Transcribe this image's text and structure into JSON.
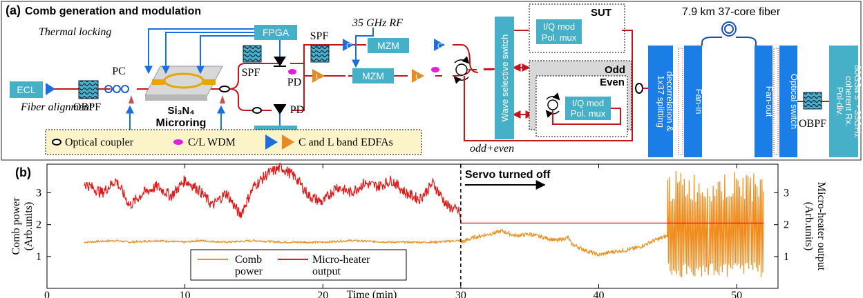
{
  "panel_a": {
    "label": "(a)",
    "title": "Comb generation and modulation",
    "thermal_locking": "Thermal locking",
    "fiber_alignment": "Fiber alignment",
    "microring": "Microring",
    "microring_material": "Si₃N₄",
    "ecl": "ECL",
    "obpf": "OBPF",
    "pc": "PC",
    "fpga": "FPGA",
    "spf": "SPF",
    "pd": "PD",
    "rf": "35 GHz RF",
    "mzm": "MZM",
    "c_band": "C",
    "l_band": "L",
    "wss": "Wave selective switch",
    "sut": "SUT",
    "iq_mod": "I/Q mod",
    "pol_mux": "Pol. mux",
    "odd": "Odd",
    "even": "Even",
    "odd_even": "odd+even",
    "splitting_line1": "1x37 splitting",
    "splitting_line2": "decorrelation &",
    "splitting_line3": "amplification",
    "fan_in": "Fan-in",
    "fan_out": "Fan-out",
    "fiber": "7.9 km 37-core fiber",
    "optical_switch": "Optical switch",
    "rx_line1": "Pol-div.",
    "rx_line2": "coherent Rx.",
    "rx_line3": "80GSa s⁻¹ 33GHz",
    "legend_coupler": "Optical coupler",
    "legend_wdm": "C/L WDM",
    "legend_edfa": "C and L band EDFAs",
    "colors": {
      "box": "#46b0c8",
      "blue_box": "#1a7ee6",
      "red_line": "#c4141c",
      "control": "#1a6fe0",
      "legend_bg": "#fdf3c8",
      "edfa_c": "#1c6fdc",
      "edfa_l": "#e88a24",
      "wdm": "#e11de0"
    }
  },
  "panel_b": {
    "label": "(b)",
    "annotation": "Servo turned off",
    "legend_comb_line1": "Comb",
    "legend_comb_line2": "power",
    "legend_heater_line1": "Micro-heater",
    "legend_heater_line2": "output",
    "ylabel_left_line1": "Comb power",
    "ylabel_left_line2": "(Arb.units)",
    "ylabel_right_line1": "Micro-heater output",
    "ylabel_right_line2": "(Arb.units)",
    "xlabel": "Time (min)"
  },
  "chart_data": {
    "type": "line",
    "xlabel": "Time (min)",
    "ylabel": "Comb power (Arb.units)",
    "y2label": "Micro-heater output (Arb.units)",
    "xlim": [
      0,
      53
    ],
    "ylim": [
      0,
      3.9
    ],
    "x_ticks": [
      0,
      10,
      20,
      30,
      40,
      50
    ],
    "y_ticks": [
      1,
      2,
      3
    ],
    "y2_ticks": [
      1,
      2,
      3
    ],
    "servo_off_x": 30,
    "grid": false,
    "legend_placement": "bottom-center",
    "series": [
      {
        "name": "Comb power",
        "color": "#f08c1c",
        "x": [
          2.7,
          5,
          6,
          8,
          10,
          11,
          13,
          15,
          17,
          20,
          22,
          25,
          28,
          29.9,
          30,
          31,
          32,
          33,
          34,
          35,
          36,
          37,
          37.8,
          38,
          39,
          40,
          41,
          42,
          43,
          44,
          45
        ],
        "y": [
          1.45,
          1.5,
          1.45,
          1.5,
          1.45,
          1.5,
          1.45,
          1.5,
          1.45,
          1.45,
          1.5,
          1.45,
          1.45,
          1.5,
          1.45,
          1.6,
          1.7,
          1.8,
          1.65,
          1.7,
          1.6,
          1.5,
          1.6,
          1.4,
          1.2,
          1.05,
          1.15,
          1.2,
          1.3,
          1.5,
          1.65
        ]
      },
      {
        "name": "Micro-heater output",
        "color": "#e01818",
        "x": [
          2.7,
          4,
          5,
          6,
          7,
          8,
          9,
          10,
          11,
          12,
          13,
          14,
          15,
          16,
          17,
          18,
          19,
          20,
          21,
          22,
          23,
          24,
          25,
          26,
          27,
          28,
          29,
          29.9,
          30,
          52
        ],
        "y": [
          3.3,
          3.0,
          3.4,
          2.6,
          3.0,
          3.2,
          2.9,
          3.4,
          3.1,
          2.6,
          3.0,
          2.3,
          3.2,
          3.6,
          3.8,
          3.5,
          2.9,
          2.7,
          3.2,
          3.0,
          3.3,
          3.2,
          3.4,
          3.0,
          2.8,
          3.3,
          2.6,
          2.4,
          2.05,
          2.05
        ]
      }
    ]
  }
}
